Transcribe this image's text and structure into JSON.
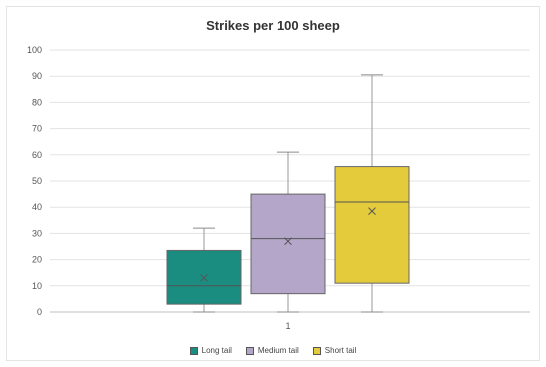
{
  "chart_data": {
    "type": "box",
    "title": "Strikes per 100 sheep",
    "xlabel": "",
    "ylabel": "",
    "ylim": [
      0,
      100
    ],
    "y_ticks": [
      0,
      10,
      20,
      30,
      40,
      50,
      60,
      70,
      80,
      90,
      100
    ],
    "categories": [
      "1"
    ],
    "grid": true,
    "legend_position": "bottom",
    "series": [
      {
        "name": "Long tail",
        "color": "#1a8c80",
        "min": 0,
        "q1": 3,
        "median": 10,
        "q3": 23.5,
        "max": 32,
        "mean": 13
      },
      {
        "name": "Medium tail",
        "color": "#b3a6c9",
        "min": 0,
        "q1": 7,
        "median": 28,
        "q3": 45,
        "max": 61,
        "mean": 27
      },
      {
        "name": "Short tail",
        "color": "#e3cb3c",
        "min": 0,
        "q1": 11,
        "median": 42,
        "q3": 55.5,
        "max": 90.5,
        "mean": 38.5
      }
    ]
  }
}
